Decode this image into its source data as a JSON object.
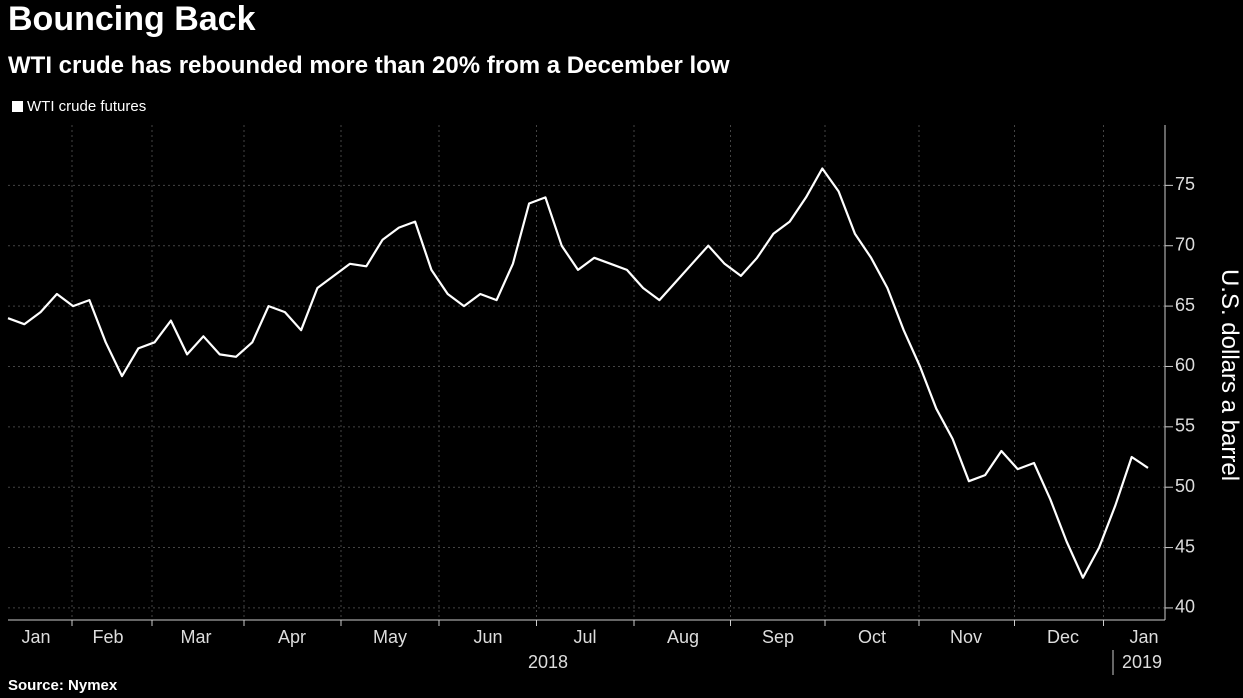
{
  "chart_data": {
    "type": "line",
    "title": "Bouncing Back",
    "subtitle": "WTI crude has rebounded more than 20% from a December low",
    "source": "Source: Nymex",
    "y_axis_label": "U.S. dollars a barrel",
    "xtick_labels": [
      "Jan",
      "Feb",
      "Mar",
      "Apr",
      "May",
      "Jun",
      "Jul",
      "Aug",
      "Sep",
      "Oct",
      "Nov",
      "Dec",
      "Jan"
    ],
    "year_labels": [
      "2018",
      "2019"
    ],
    "series": [
      {
        "name": "WTI crude futures",
        "color": "#ffffff",
        "values": [
          64,
          63.5,
          64.5,
          66,
          65,
          65.5,
          62,
          59.2,
          61.5,
          62,
          63.8,
          61,
          62.5,
          61,
          60.8,
          62,
          65,
          64.5,
          63,
          66.5,
          67.5,
          68.5,
          68.3,
          70.5,
          71.5,
          72,
          68,
          66,
          65,
          66,
          65.5,
          68.5,
          73.5,
          74,
          70,
          68,
          69,
          68.5,
          68,
          66.5,
          65.5,
          67,
          68.5,
          70,
          68.5,
          67.5,
          69,
          71,
          72,
          74,
          76.4,
          74.5,
          71,
          69,
          66.5,
          63,
          60,
          56.5,
          54,
          50.5,
          51,
          53,
          51.5,
          52,
          49,
          45.5,
          42.5,
          45,
          48.5,
          52.5,
          51.6
        ]
      }
    ],
    "ylim": [
      39,
      80
    ],
    "yticks": [
      40,
      45,
      50,
      55,
      60,
      65,
      70,
      75
    ],
    "grid": true
  }
}
